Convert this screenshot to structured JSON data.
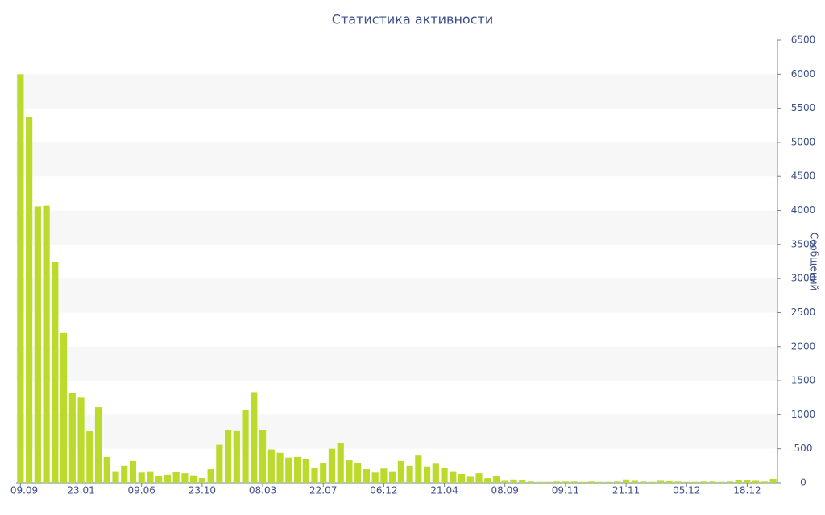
{
  "chart_data": {
    "type": "bar",
    "title": "Статистика активности",
    "y_axis_label": "Сообщений",
    "categories": [
      "09.09",
      null,
      null,
      null,
      null,
      null,
      null,
      "23.01",
      null,
      null,
      null,
      null,
      null,
      null,
      "09.06",
      null,
      null,
      null,
      null,
      null,
      null,
      "23.10",
      null,
      null,
      null,
      null,
      null,
      null,
      "08.03",
      null,
      null,
      null,
      null,
      null,
      null,
      "22.07",
      null,
      null,
      null,
      null,
      null,
      null,
      "06.12",
      null,
      null,
      null,
      null,
      null,
      null,
      "21.04",
      null,
      null,
      null,
      null,
      null,
      null,
      "08.09",
      null,
      null,
      null,
      null,
      null,
      null,
      "09.11",
      null,
      null,
      null,
      null,
      null,
      null,
      "21.11",
      null,
      null,
      null,
      null,
      null,
      null,
      "05.12",
      null,
      null,
      null,
      null,
      null,
      null,
      "18.12",
      null,
      null,
      null
    ],
    "values": [
      6000,
      5370,
      4060,
      4070,
      3240,
      2200,
      1320,
      1260,
      760,
      1110,
      380,
      170,
      250,
      320,
      150,
      170,
      100,
      120,
      160,
      140,
      110,
      70,
      200,
      560,
      780,
      770,
      1070,
      1330,
      780,
      490,
      440,
      370,
      380,
      350,
      220,
      290,
      500,
      580,
      330,
      290,
      200,
      150,
      210,
      170,
      320,
      250,
      400,
      240,
      280,
      220,
      170,
      130,
      90,
      140,
      70,
      100,
      30,
      50,
      40,
      20,
      15,
      15,
      20,
      20,
      20,
      15,
      20,
      15,
      15,
      20,
      50,
      30,
      20,
      15,
      30,
      25,
      20,
      15,
      15,
      20,
      20,
      15,
      20,
      40,
      40,
      30,
      20,
      60
    ],
    "color": "#bada2c",
    "ylim": [
      0,
      6500
    ],
    "yticks": [
      0,
      500,
      1000,
      1500,
      2000,
      2500,
      3000,
      3500,
      4000,
      4500,
      5000,
      5500,
      6000,
      6500
    ],
    "grid_bands": true,
    "y_axis_side": "right"
  }
}
